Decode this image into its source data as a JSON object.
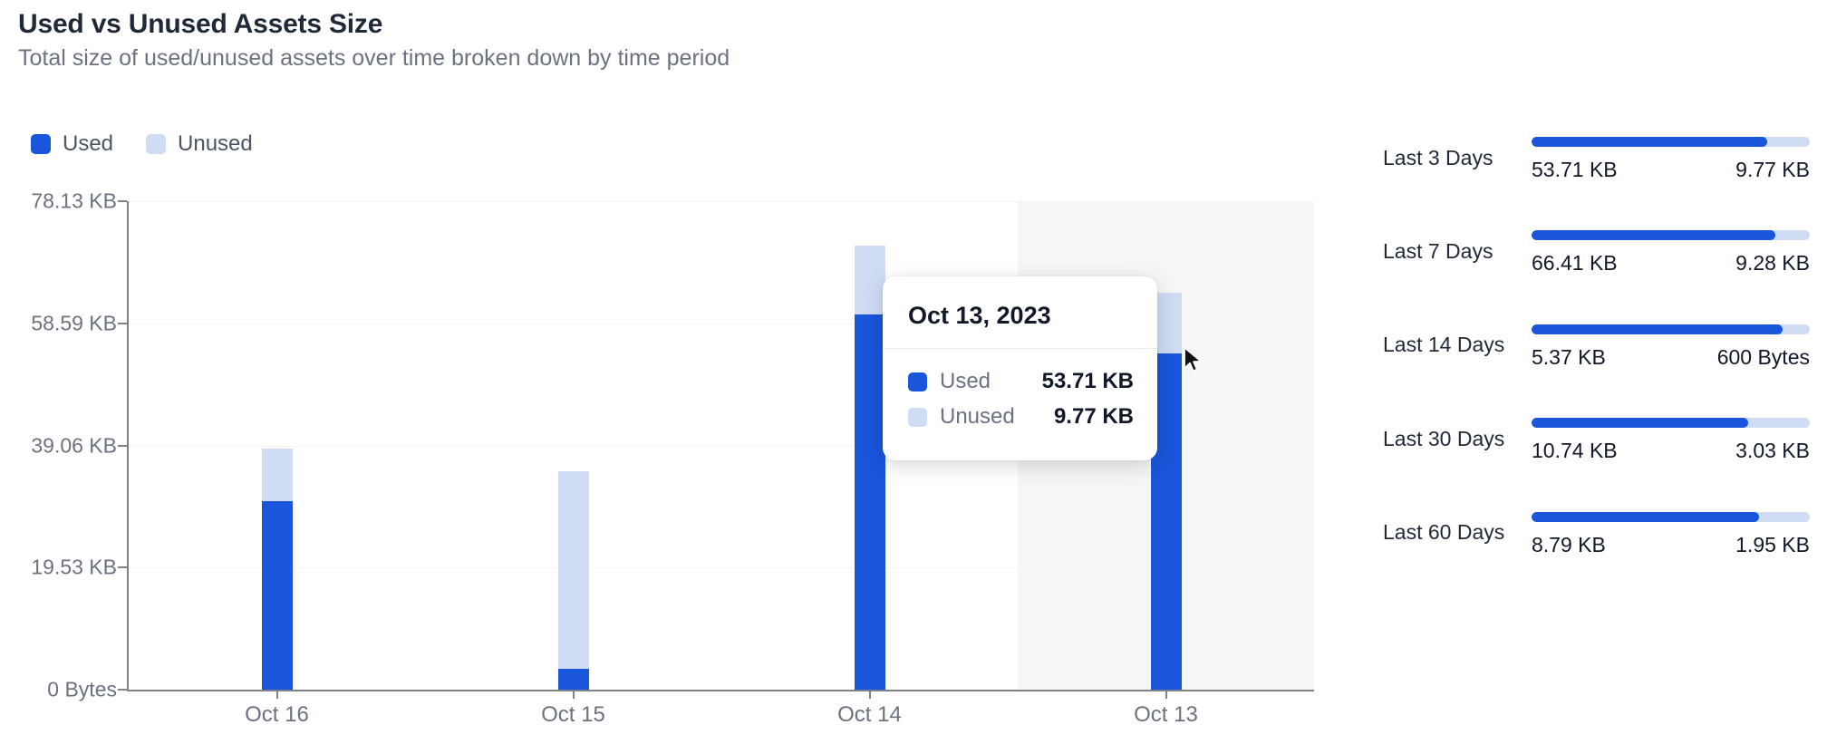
{
  "header": {
    "title": "Used vs Unused Assets Size",
    "subtitle": "Total size of used/unused assets over time broken down by time period"
  },
  "colors": {
    "used": "#1a56db",
    "unused": "#cfdcf4",
    "axis": "#7d828b",
    "grid": "#f3f4f5",
    "muted_text": "#6b7280",
    "hover_band": "#f6f6f7"
  },
  "legend": {
    "items": [
      {
        "label": "Used",
        "color": "#1a56db"
      },
      {
        "label": "Unused",
        "color": "#cfdcf4"
      }
    ]
  },
  "chart_data": {
    "type": "bar",
    "stacked": true,
    "title": "Used vs Unused Assets Size",
    "categories": [
      "Oct 16",
      "Oct 15",
      "Oct 14",
      "Oct 13"
    ],
    "series": [
      {
        "name": "Used",
        "color": "#1a56db",
        "values_kb": [
          30.1,
          3.3,
          60.0,
          53.71
        ]
      },
      {
        "name": "Unused",
        "color": "#cfdcf4",
        "values_kb": [
          8.4,
          31.7,
          11.0,
          9.77
        ]
      }
    ],
    "y_axis": {
      "ticks": [
        "78.13 KB",
        "58.59 KB",
        "39.06 KB",
        "19.53 KB",
        "0 Bytes"
      ],
      "max_kb": 78.13
    },
    "x_axis_label": "",
    "grid": true,
    "legend_position": "top-left",
    "hovered_category_index": 3
  },
  "tooltip": {
    "title": "Oct 13, 2023",
    "rows": [
      {
        "label": "Used",
        "value": "53.71 KB",
        "color": "#1a56db"
      },
      {
        "label": "Unused",
        "value": "9.77 KB",
        "color": "#cfdcf4"
      }
    ]
  },
  "summary": {
    "rows": [
      {
        "label": "Last 3 Days",
        "used": "53.71 KB",
        "unused": "9.77 KB",
        "used_pct": 84.6
      },
      {
        "label": "Last 7 Days",
        "used": "66.41 KB",
        "unused": "9.28 KB",
        "used_pct": 87.7
      },
      {
        "label": "Last 14 Days",
        "used": "5.37 KB",
        "unused": "600 Bytes",
        "used_pct": 90.2
      },
      {
        "label": "Last 30 Days",
        "used": "10.74 KB",
        "unused": "3.03 KB",
        "used_pct": 78.0
      },
      {
        "label": "Last 60 Days",
        "used": "8.79 KB",
        "unused": "1.95 KB",
        "used_pct": 81.8
      }
    ]
  }
}
